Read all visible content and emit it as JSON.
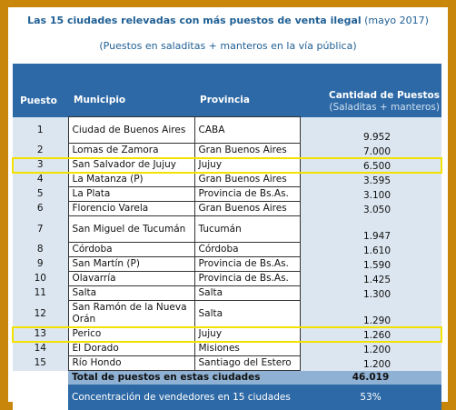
{
  "title": {
    "bold": "Las 15 ciudades relevadas con más puestos de venta ilegal",
    "suffix": "(mayo 2017)"
  },
  "subtitle": "(Puestos en saladitas + manteros en la vía pública)",
  "headers": {
    "puesto": "Puesto",
    "municipio": "Municipio",
    "provincia": "Provincia",
    "cantidad_main": "Cantidad de Puestos",
    "cantidad_sub": "(Saladitas + manteros)"
  },
  "rows": [
    {
      "puesto": "1",
      "municipio": "Ciudad de Buenos Aires",
      "provincia": "CABA",
      "cantidad": "9.952"
    },
    {
      "puesto": "2",
      "municipio": "Lomas de Zamora",
      "provincia": "Gran Buenos Aires",
      "cantidad": "7.000"
    },
    {
      "puesto": "3",
      "municipio": "San Salvador de Jujuy",
      "provincia": "Jujuy",
      "cantidad": "6.500"
    },
    {
      "puesto": "4",
      "municipio": "La Matanza (P)",
      "provincia": "Gran Buenos Aires",
      "cantidad": "3.595"
    },
    {
      "puesto": "5",
      "municipio": "La Plata",
      "provincia": "Provincia de Bs.As.",
      "cantidad": "3.100"
    },
    {
      "puesto": "6",
      "municipio": "Florencio Varela",
      "provincia": "Gran Buenos Aires",
      "cantidad": "3.050"
    },
    {
      "puesto": "7",
      "municipio": "San Miguel de Tucumán",
      "provincia": "Tucumán",
      "cantidad": "1.947"
    },
    {
      "puesto": "8",
      "municipio": "Córdoba",
      "provincia": "Córdoba",
      "cantidad": "1.610"
    },
    {
      "puesto": "9",
      "municipio": "San Martín (P)",
      "provincia": "Provincia de Bs.As.",
      "cantidad": "1.590"
    },
    {
      "puesto": "10",
      "municipio": "Olavarría",
      "provincia": "Provincia de Bs.As.",
      "cantidad": "1.425"
    },
    {
      "puesto": "11",
      "municipio": "Salta",
      "provincia": "Salta",
      "cantidad": "1.300"
    },
    {
      "puesto": "12",
      "municipio": "San Ramón de la Nueva Orán",
      "provincia": "Salta",
      "cantidad": "1.290"
    },
    {
      "puesto": "13",
      "municipio": "Perico",
      "provincia": "Jujuy",
      "cantidad": "1.260"
    },
    {
      "puesto": "14",
      "municipio": "El Dorado",
      "provincia": "Misiones",
      "cantidad": "1.200"
    },
    {
      "puesto": "15",
      "municipio": "Río Hondo",
      "provincia": "Santiago del Estero",
      "cantidad": "1.200"
    }
  ],
  "total": {
    "label": "Total de puestos en estas ciudades",
    "value": "46.019"
  },
  "concentracion": {
    "label": "Concentración de vendedores en 15 ciudades",
    "value": "53%"
  },
  "highlighted_puestos": [
    "3",
    "13"
  ],
  "colors": {
    "border": "#c8870a",
    "header": "#2d69a6",
    "highlight": "#f2e200",
    "total_row": "#8fb1d4",
    "number_column": "#dce6f0"
  }
}
